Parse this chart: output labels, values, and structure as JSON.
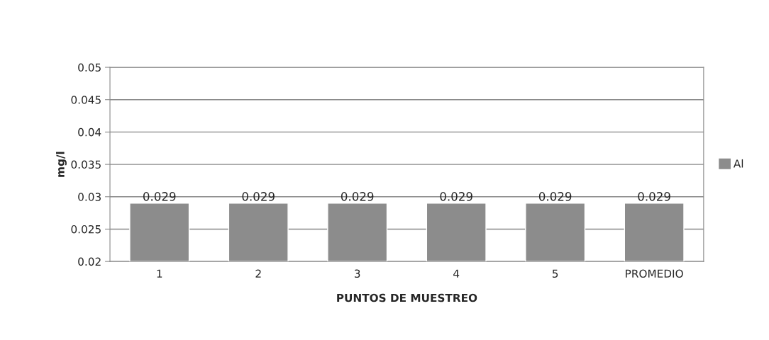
{
  "chart_data": {
    "type": "bar",
    "xlabel": "PUNTOS DE MUESTREO",
    "ylabel": "mg/l",
    "categories": [
      "1",
      "2",
      "3",
      "4",
      "5",
      "PROMEDIO"
    ],
    "series": [
      {
        "name": "Al",
        "color": "#8c8c8c",
        "values": [
          0.029,
          0.029,
          0.029,
          0.029,
          0.029,
          0.029
        ]
      }
    ],
    "ylim": [
      0.02,
      0.05
    ],
    "yticks": [
      0.02,
      0.025,
      0.03,
      0.035,
      0.04,
      0.045,
      0.05
    ],
    "grid": "y",
    "legend": "right",
    "data_labels": true
  }
}
